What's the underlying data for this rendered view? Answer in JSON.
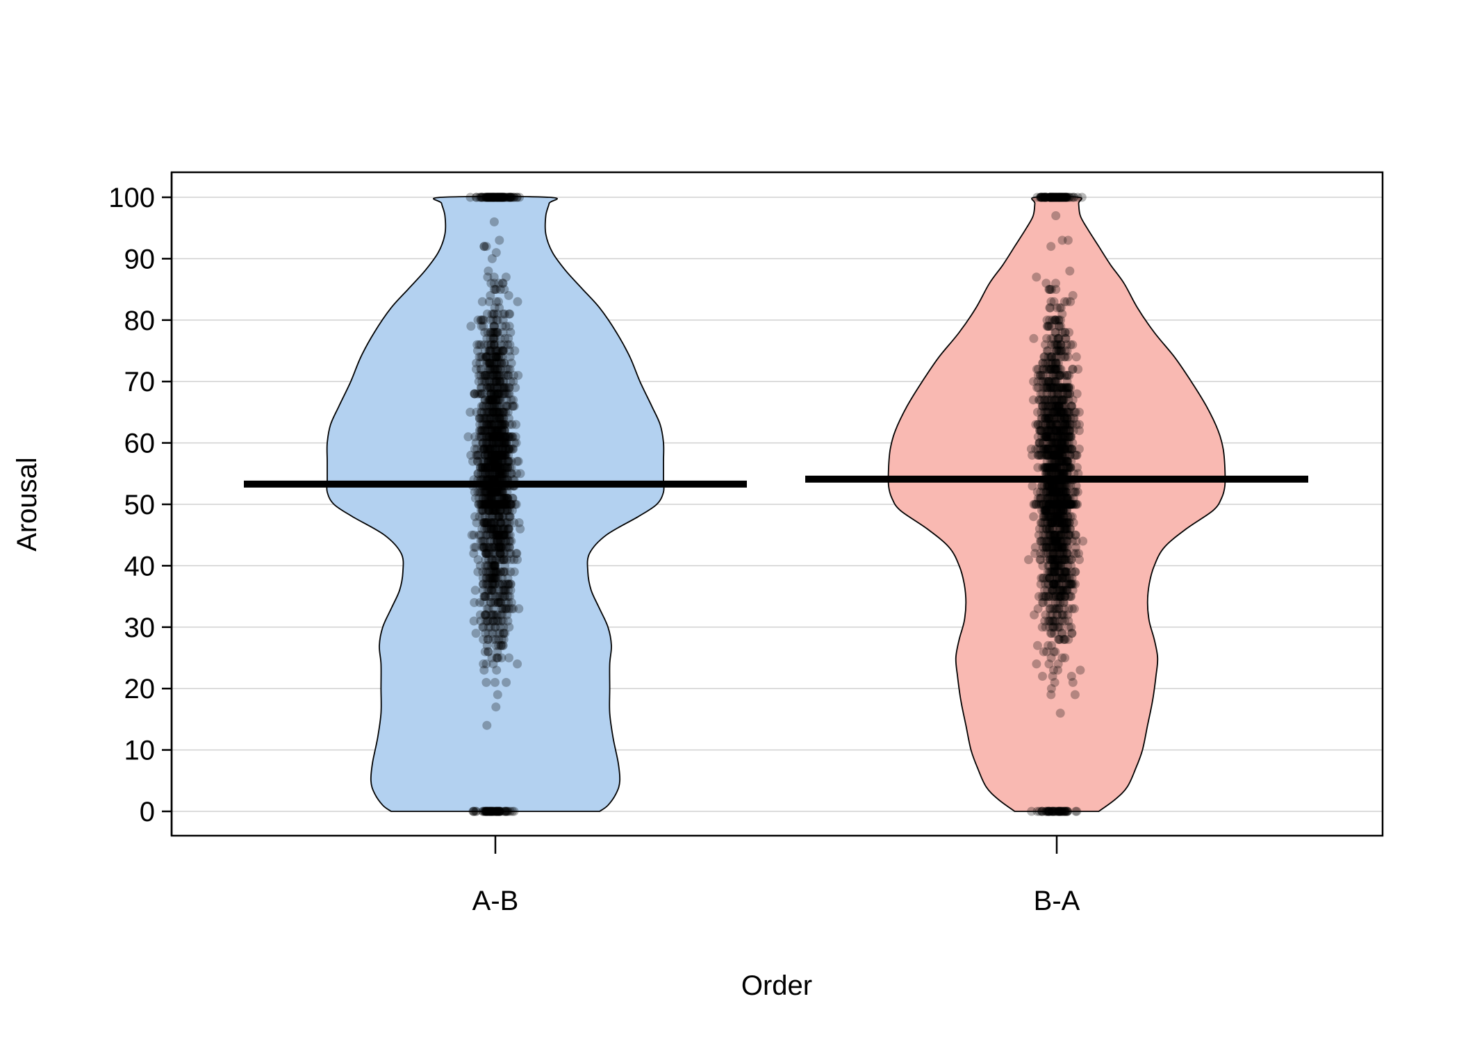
{
  "chart_data": {
    "type": "pirate",
    "xlabel": "Order",
    "ylabel": "Arousal",
    "categories": [
      "A-B",
      "B-A"
    ],
    "ylim": [
      -4,
      104
    ],
    "yticks": [
      0,
      10,
      20,
      30,
      40,
      50,
      60,
      70,
      80,
      90,
      100
    ],
    "grid": "horizontal",
    "groups": [
      {
        "name": "A-B",
        "mean": 53.3,
        "fill": "#b3d1f0",
        "density": [
          [
            0,
            0.62
          ],
          [
            1,
            0.67
          ],
          [
            3,
            0.72
          ],
          [
            5,
            0.74
          ],
          [
            8,
            0.73
          ],
          [
            12,
            0.7
          ],
          [
            16,
            0.68
          ],
          [
            20,
            0.68
          ],
          [
            24,
            0.68
          ],
          [
            27,
            0.69
          ],
          [
            30,
            0.67
          ],
          [
            33,
            0.62
          ],
          [
            36,
            0.57
          ],
          [
            39,
            0.55
          ],
          [
            42,
            0.56
          ],
          [
            45,
            0.66
          ],
          [
            48,
            0.85
          ],
          [
            50,
            0.96
          ],
          [
            52,
            1.0
          ],
          [
            54,
            1.0
          ],
          [
            57,
            1.0
          ],
          [
            60,
            1.0
          ],
          [
            63,
            0.98
          ],
          [
            66,
            0.93
          ],
          [
            70,
            0.86
          ],
          [
            74,
            0.8
          ],
          [
            78,
            0.72
          ],
          [
            82,
            0.62
          ],
          [
            85,
            0.52
          ],
          [
            88,
            0.42
          ],
          [
            91,
            0.34
          ],
          [
            94,
            0.3
          ],
          [
            97,
            0.3
          ],
          [
            99,
            0.32
          ],
          [
            100,
            0.32
          ]
        ]
      },
      {
        "name": "B-A",
        "mean": 54.1,
        "fill": "#f9b9b2",
        "density": [
          [
            0,
            0.25
          ],
          [
            2,
            0.35
          ],
          [
            4,
            0.42
          ],
          [
            7,
            0.47
          ],
          [
            10,
            0.51
          ],
          [
            14,
            0.54
          ],
          [
            18,
            0.57
          ],
          [
            22,
            0.59
          ],
          [
            25,
            0.6
          ],
          [
            28,
            0.58
          ],
          [
            31,
            0.55
          ],
          [
            34,
            0.54
          ],
          [
            37,
            0.55
          ],
          [
            40,
            0.58
          ],
          [
            43,
            0.64
          ],
          [
            46,
            0.77
          ],
          [
            49,
            0.93
          ],
          [
            51,
            0.98
          ],
          [
            53,
            1.0
          ],
          [
            56,
            1.0
          ],
          [
            59,
            0.99
          ],
          [
            62,
            0.96
          ],
          [
            66,
            0.89
          ],
          [
            70,
            0.8
          ],
          [
            74,
            0.7
          ],
          [
            78,
            0.58
          ],
          [
            82,
            0.48
          ],
          [
            86,
            0.4
          ],
          [
            89,
            0.32
          ],
          [
            92,
            0.25
          ],
          [
            95,
            0.18
          ],
          [
            97,
            0.14
          ],
          [
            99,
            0.13
          ],
          [
            100,
            0.13
          ]
        ]
      }
    ]
  }
}
